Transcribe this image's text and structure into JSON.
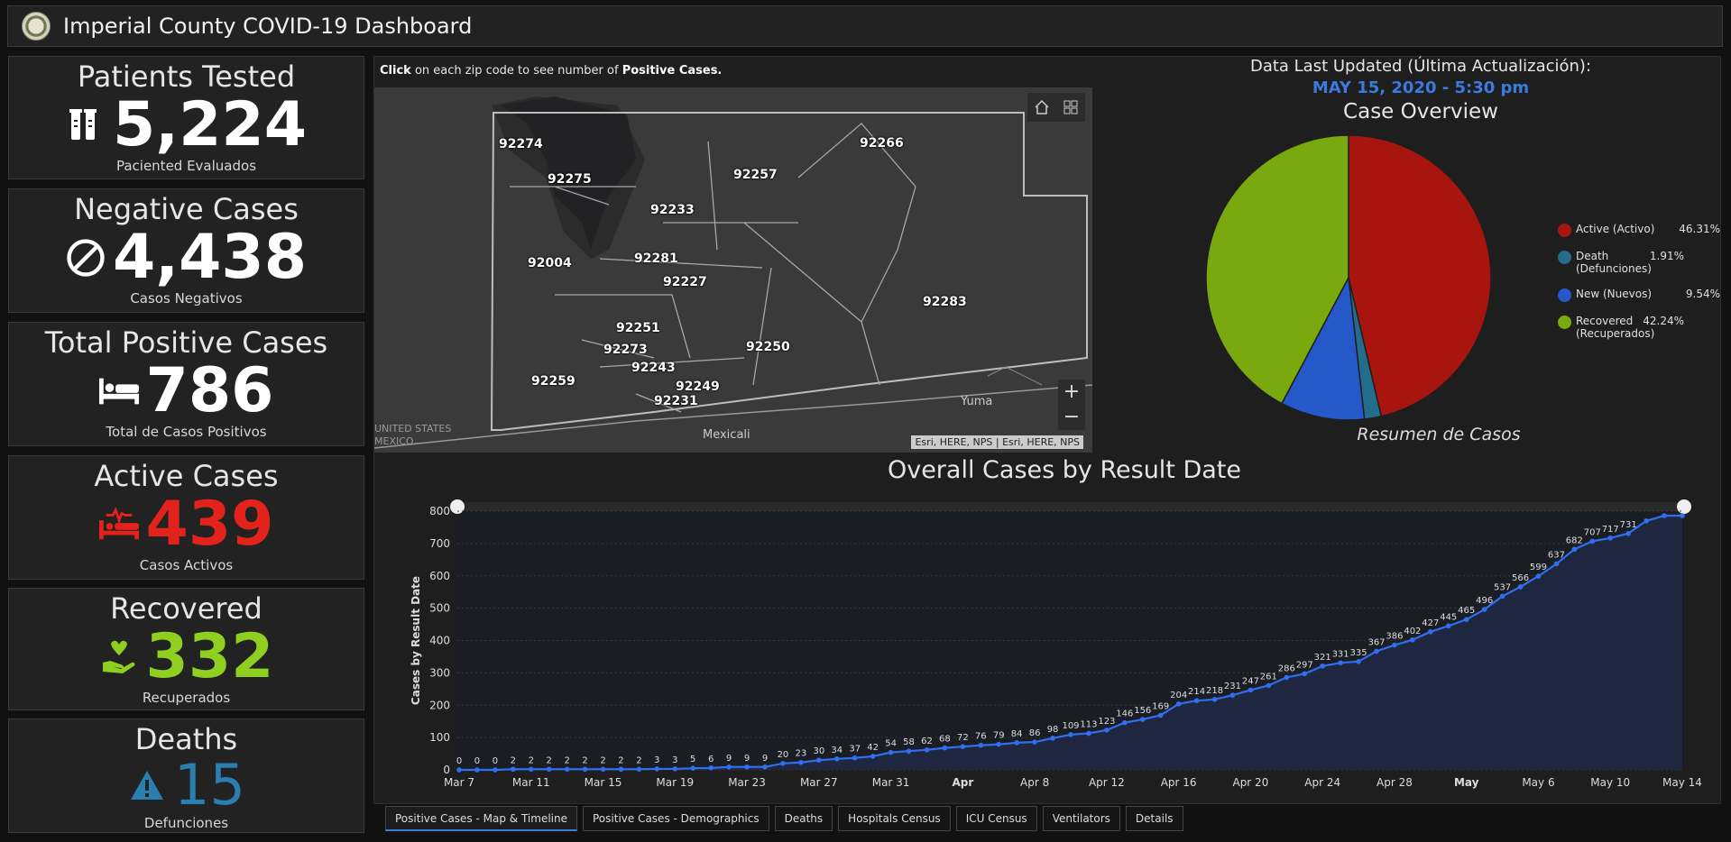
{
  "header": {
    "title": "Imperial County COVID-19 Dashboard"
  },
  "stats": [
    {
      "title": "Patients Tested",
      "value": "5,224",
      "sub": "Paciented Evaluados",
      "color": "#ffffff",
      "icon": "test-tubes-icon"
    },
    {
      "title": "Negative Cases",
      "value": "4,438",
      "sub": "Casos Negativos",
      "color": "#ffffff",
      "icon": "ban-icon"
    },
    {
      "title": "Total Positive Cases",
      "value": "786",
      "sub": "Total de Casos Positivos",
      "color": "#ffffff",
      "icon": "bed-icon"
    },
    {
      "title": "Active Cases",
      "value": "439",
      "sub": "Casos Activos",
      "color": "#e3221c",
      "icon": "procedures-icon"
    },
    {
      "title": "Recovered",
      "value": "332",
      "sub": "Recuperados",
      "color": "#8fcf1f",
      "icon": "hand-holding-heart-icon"
    },
    {
      "title": "Deaths",
      "value": "15",
      "sub": "Defunciones",
      "color": "#2a7fb0",
      "icon": "warning-icon"
    }
  ],
  "map": {
    "caption_bold1": "Click",
    "caption_mid": " on each zip code to see number of ",
    "caption_bold2": "Positive Cases.",
    "attribution": "Esri, HERE, NPS | Esri, HERE, NPS",
    "zoom_in": "+",
    "zoom_out": "−",
    "zips": [
      "92274",
      "92275",
      "92233",
      "92257",
      "92266",
      "92004",
      "92281",
      "92227",
      "92283",
      "92251",
      "92273",
      "92243",
      "92250",
      "92249",
      "92231",
      "92259"
    ],
    "places": {
      "mexicali": "Mexicali",
      "yuma": "Yuma",
      "us": "UNITED STATES",
      "mx": "MEXICO"
    }
  },
  "updated": {
    "label": "Data Last Updated (Última Actualización):",
    "date": "MAY 15, 2020 - 5:30 pm"
  },
  "pie": {
    "title": "Case Overview",
    "subtitle": "Resumen de Casos",
    "slices": [
      {
        "name": "Active (Activo)",
        "pct": 46.31,
        "label": "46.31%",
        "color": "#a8140e"
      },
      {
        "name": "Death (Defunciones)",
        "pct": 1.91,
        "label": "1.91%",
        "color": "#236c8c"
      },
      {
        "name": "New (Nuevos)",
        "pct": 9.54,
        "label": "9.54%",
        "color": "#2559c9"
      },
      {
        "name": "Recovered (Recuperados)",
        "pct": 42.24,
        "label": "42.24%",
        "color": "#79a80f"
      }
    ]
  },
  "chart_data": {
    "type": "line",
    "title": "Overall Cases by Result Date",
    "ylabel": "Cases by Result Date",
    "ylim": [
      0,
      800
    ],
    "yticks": [
      0,
      100,
      200,
      300,
      400,
      500,
      600,
      700,
      800
    ],
    "xticks": [
      "Mar 7",
      "Mar 11",
      "Mar 15",
      "Mar 19",
      "Mar 23",
      "Mar 27",
      "Mar 31",
      "Apr",
      "Apr 8",
      "Apr 12",
      "Apr 16",
      "Apr 20",
      "Apr 24",
      "Apr 28",
      "May",
      "May 6",
      "May 10",
      "May 14"
    ],
    "bold_ticks": [
      "Apr",
      "May"
    ],
    "x_start": "Mar 7",
    "values": [
      0,
      0,
      0,
      2,
      2,
      2,
      2,
      2,
      2,
      2,
      2,
      3,
      3,
      5,
      6,
      9,
      9,
      9,
      20,
      23,
      30,
      34,
      37,
      42,
      54,
      58,
      62,
      68,
      72,
      76,
      79,
      84,
      86,
      98,
      109,
      113,
      123,
      146,
      156,
      169,
      204,
      214,
      218,
      231,
      247,
      261,
      286,
      297,
      321,
      331,
      335,
      367,
      386,
      402,
      427,
      445,
      465,
      496,
      537,
      566,
      599,
      637,
      682,
      707,
      717,
      731,
      null,
      null,
      null
    ]
  },
  "tabs": [
    "Positive Cases - Map & Timeline",
    "Positive Cases - Demographics",
    "Deaths",
    "Hospitals Census",
    "ICU Census",
    "Ventilators",
    "Details"
  ]
}
